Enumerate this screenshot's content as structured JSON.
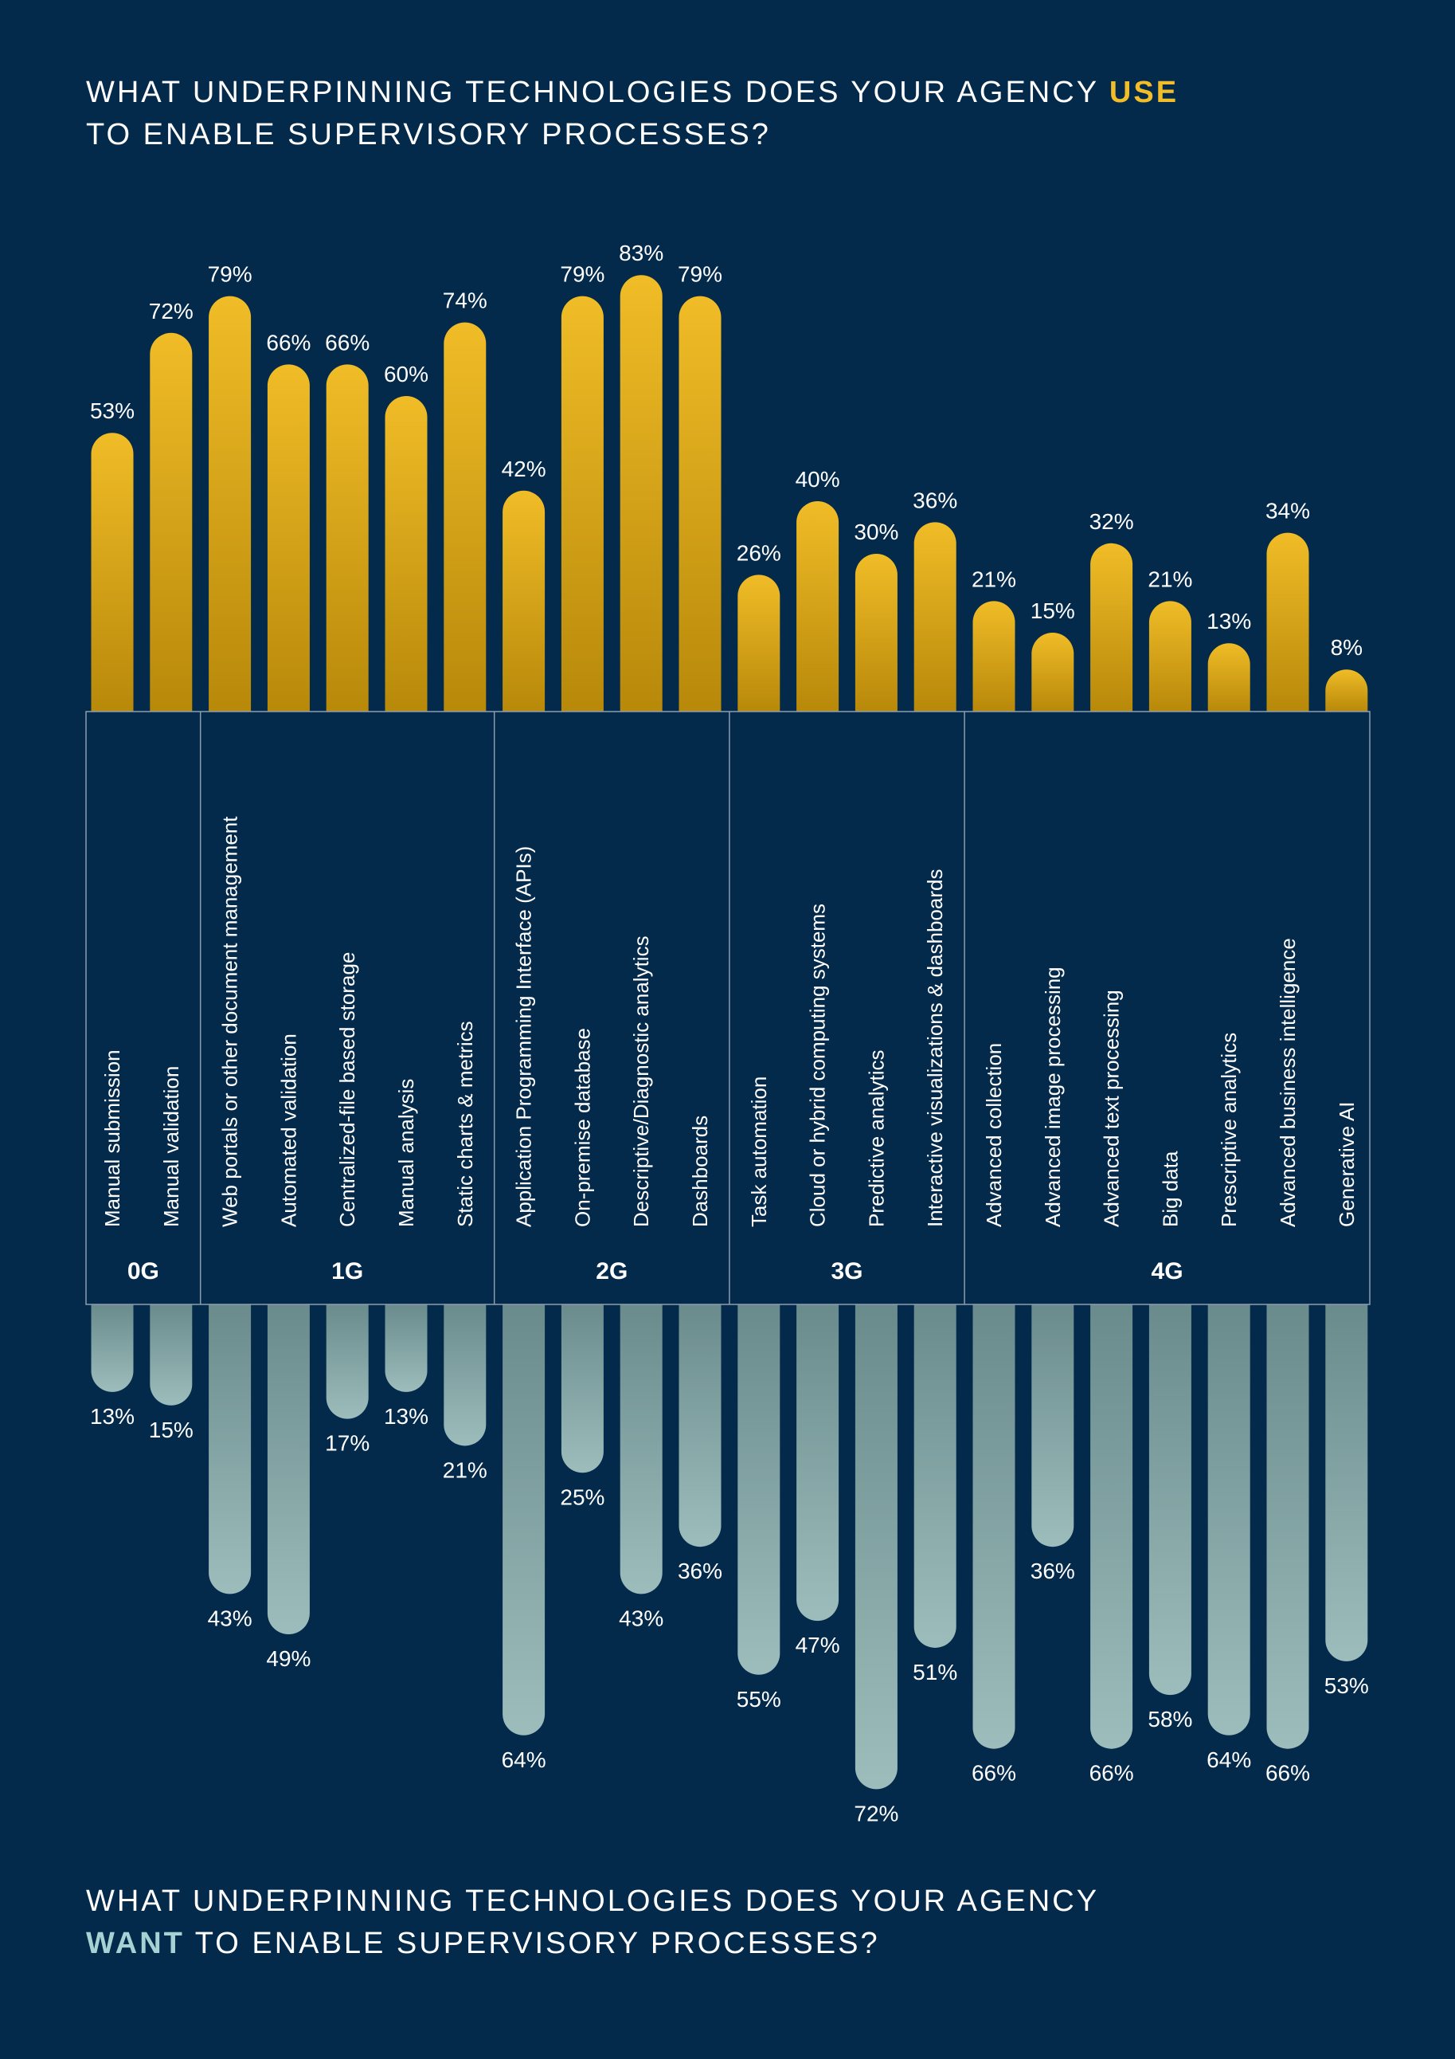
{
  "titles": {
    "top_prefix": "WHAT UNDERPINNING TECHNOLOGIES DOES YOUR AGENCY",
    "top_highlight": "USE",
    "top_line2": "TO ENABLE SUPERVISORY PROCESSES?",
    "bottom_line1": "WHAT UNDERPINNING TECHNOLOGIES DOES YOUR AGENCY",
    "bottom_highlight": "WANT",
    "bottom_suffix": "TO ENABLE SUPERVISORY PROCESSES?"
  },
  "colors": {
    "background": "#03294b",
    "use_top": "#f0bc27",
    "use_bottom": "#b8890a",
    "want_top": "#6a8b8c",
    "want_bottom": "#9dbdbc",
    "use_highlight": "#f1be2a",
    "want_highlight": "#a7d2d4",
    "divider": "#8c9db0"
  },
  "chart_data": {
    "type": "bar",
    "categories": [
      "Manual submission",
      "Manual validation",
      "Web portals or other document management",
      "Automated validation",
      "Centralized-file based storage",
      "Manual analysis",
      "Static charts & metrics",
      "Application Programming Interface (APIs)",
      "On-premise database",
      "Descriptive/Diagnostic analytics",
      "Dashboards",
      "Task automation",
      "Cloud or hybrid computing systems",
      "Predictive analytics",
      "Interactive visualizations & dashboards",
      "Advanced collection",
      "Advanced image processing",
      "Advanced text processing",
      "Big data",
      "Prescriptive analytics",
      "Advanced business intelligence",
      "Generative AI"
    ],
    "groups": [
      {
        "name": "0G",
        "count": 2
      },
      {
        "name": "1G",
        "count": 5
      },
      {
        "name": "2G",
        "count": 4
      },
      {
        "name": "3G",
        "count": 4
      },
      {
        "name": "4G",
        "count": 7
      }
    ],
    "series": [
      {
        "name": "Use",
        "values": [
          53,
          72,
          79,
          66,
          66,
          60,
          74,
          42,
          79,
          83,
          79,
          26,
          40,
          30,
          36,
          21,
          15,
          32,
          21,
          13,
          34,
          8
        ]
      },
      {
        "name": "Want",
        "values": [
          13,
          15,
          43,
          49,
          17,
          13,
          21,
          64,
          25,
          43,
          36,
          55,
          47,
          72,
          51,
          66,
          36,
          66,
          58,
          64,
          66,
          53
        ]
      }
    ],
    "value_suffix": "%",
    "ylim": [
      0,
      100
    ]
  }
}
